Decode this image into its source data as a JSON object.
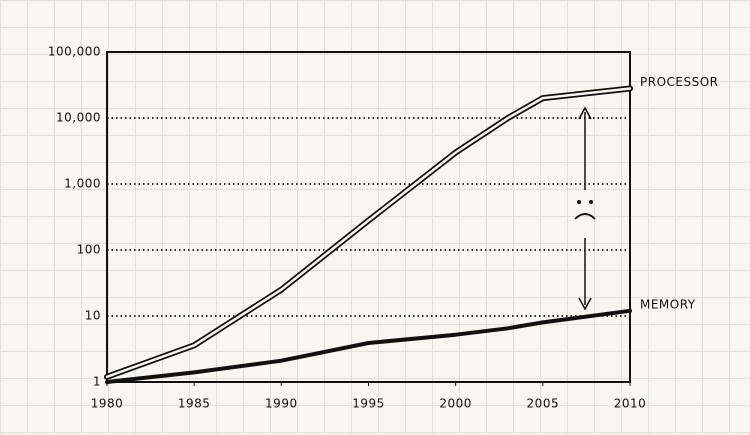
{
  "chart_data": {
    "type": "line",
    "x": [
      1980,
      1985,
      1990,
      1995,
      2000,
      2003,
      2005,
      2010
    ],
    "series": [
      {
        "name": "PROCESSOR",
        "color": "#111111",
        "style": "double",
        "values": [
          1.2,
          3.6,
          25,
          280,
          3000,
          10000,
          20000,
          28000
        ]
      },
      {
        "name": "MEMORY",
        "color": "#111111",
        "style": "thick",
        "values": [
          1,
          1.4,
          2.1,
          3.9,
          5.2,
          6.5,
          8,
          12
        ]
      }
    ],
    "xlim": [
      1980,
      2010
    ],
    "xticks": [
      1980,
      1985,
      1990,
      1995,
      2000,
      2005,
      2010
    ],
    "ylim": [
      1,
      100000
    ],
    "log_y": true,
    "yticks": [
      1,
      10,
      100,
      {
        "value": 1000,
        "label": "1,000"
      },
      {
        "value": 10000,
        "label": "10,000"
      },
      {
        "value": 100000,
        "label": "100,000"
      }
    ],
    "grid": true
  }
}
